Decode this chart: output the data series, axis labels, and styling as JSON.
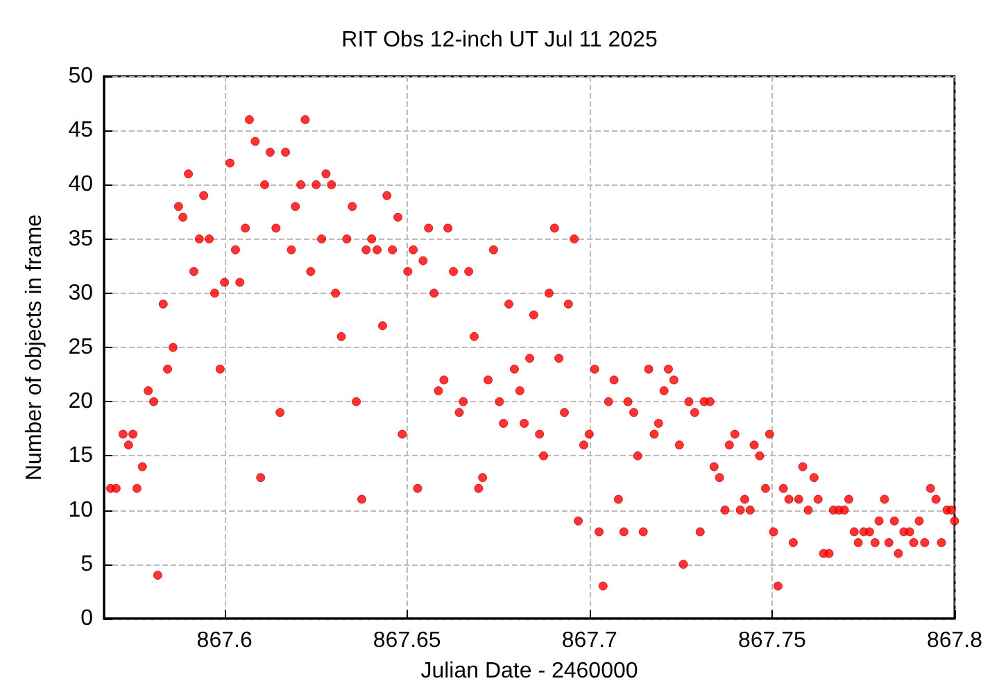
{
  "chart_data": {
    "type": "scatter",
    "title": "RIT Obs 12-inch UT Jul 11 2025",
    "xlabel": "Julian Date - 2460000",
    "ylabel": "Number of objects in frame",
    "x": [
      867.5688,
      867.5703,
      867.5722,
      867.5737,
      867.5749,
      867.576,
      867.5775,
      867.5791,
      867.5806,
      867.5817,
      867.5832,
      867.5844,
      867.5859,
      867.5874,
      867.5886,
      867.5901,
      867.5916,
      867.5931,
      867.5943,
      867.5958,
      867.5973,
      867.5988,
      867.6,
      867.6015,
      867.603,
      867.6042,
      867.6057,
      867.6068,
      867.6084,
      867.6099,
      867.611,
      867.6125,
      867.6141,
      867.6152,
      867.6167,
      867.6183,
      867.6194,
      867.6209,
      867.6221,
      867.6236,
      867.6251,
      867.6266,
      867.6278,
      867.6293,
      867.6304,
      867.632,
      867.6335,
      867.635,
      867.6361,
      867.6376,
      867.6388,
      867.6403,
      867.6418,
      867.6433,
      867.6445,
      867.646,
      867.6475,
      867.6487,
      867.6502,
      867.6517,
      867.6529,
      867.6544,
      867.6559,
      867.6574,
      867.6586,
      867.6601,
      867.6612,
      867.6627,
      867.6643,
      867.6654,
      867.6669,
      867.6684,
      867.6696,
      867.6707,
      867.6722,
      867.6737,
      867.6753,
      867.6764,
      867.6779,
      867.6794,
      867.6809,
      867.6821,
      867.6836,
      867.6847,
      867.6863,
      867.6874,
      867.6889,
      867.6904,
      867.6916,
      867.6931,
      867.6942,
      867.6958,
      867.6969,
      867.6984,
      867.6999,
      867.7014,
      867.7026,
      867.7037,
      867.7052,
      867.7067,
      867.7079,
      867.7094,
      867.7105,
      867.7121,
      867.7132,
      867.7147,
      867.7162,
      867.7177,
      867.7189,
      867.7204,
      867.7216,
      867.7231,
      867.7246,
      867.7257,
      867.7272,
      867.7288,
      867.7303,
      867.7314,
      867.733,
      867.7341,
      867.7356,
      867.7371,
      867.7383,
      867.7398,
      867.7413,
      867.7425,
      867.744,
      867.7451,
      867.7466,
      867.7482,
      867.7493,
      867.7504,
      867.7516,
      867.7531,
      867.7546,
      867.7558,
      867.7573,
      867.7584,
      867.7599,
      867.7615,
      867.7626,
      867.7641,
      867.7656,
      867.7668,
      867.7683,
      867.7698,
      867.771,
      867.7725,
      867.7736,
      867.7751,
      867.7767,
      867.7782,
      867.7793,
      867.7808,
      867.782,
      867.7835,
      867.7846,
      867.7861,
      867.7877,
      867.7888,
      867.7903,
      867.7918,
      867.7934,
      867.7949,
      867.7964,
      867.7979,
      867.7991,
      867.8
    ],
    "series": [
      {
        "color": "#ff0000",
        "values": [
          12,
          12,
          17,
          16,
          17,
          12,
          14,
          21,
          20,
          4,
          29,
          23,
          25,
          38,
          37,
          41,
          32,
          35,
          39,
          35,
          30,
          23,
          31,
          42,
          34,
          31,
          36,
          46,
          44,
          13,
          40,
          43,
          36,
          19,
          43,
          34,
          38,
          40,
          46,
          32,
          40,
          35,
          41,
          40,
          30,
          26,
          35,
          38,
          20,
          11,
          34,
          35,
          34,
          27,
          39,
          34,
          37,
          17,
          32,
          34,
          12,
          33,
          36,
          30,
          21,
          22,
          36,
          32,
          19,
          20,
          32,
          26,
          12,
          13,
          22,
          34,
          20,
          18,
          29,
          23,
          21,
          18,
          24,
          28,
          17,
          15,
          30,
          36,
          24,
          19,
          29,
          35,
          9,
          16,
          17,
          23,
          8,
          3,
          20,
          22,
          11,
          8,
          20,
          19,
          15,
          8,
          23,
          17,
          18,
          21,
          23,
          22,
          16,
          5,
          20,
          19,
          8,
          20,
          20,
          14,
          13,
          10,
          16,
          17,
          10,
          11,
          10,
          16,
          15,
          12,
          17,
          8,
          3,
          12,
          11,
          7,
          11,
          14,
          10,
          13,
          11,
          6,
          6,
          10,
          10,
          10,
          11,
          8,
          7,
          8,
          8,
          7,
          9,
          11,
          7,
          9,
          6,
          8,
          8,
          7,
          9,
          7,
          12,
          11,
          7,
          10,
          10,
          9
        ]
      }
    ],
    "xlim": [
      867.567,
      867.8
    ],
    "xticks": [
      867.6,
      867.65,
      867.7,
      867.75,
      867.8
    ],
    "ylim": [
      0,
      50
    ],
    "yticks": [
      0,
      5,
      10,
      15,
      20,
      25,
      30,
      35,
      40,
      45,
      50
    ],
    "grid": true,
    "marker": "circle"
  }
}
